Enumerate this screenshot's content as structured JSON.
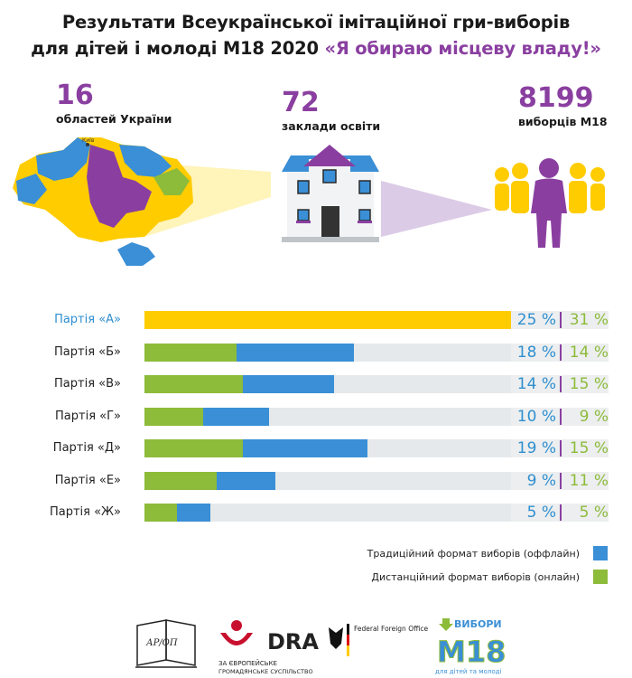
{
  "header": {
    "title_line1": "Результати Всеукраїнської імітаційної гри-виборів",
    "title_line2": "для дітей і молоді М18 2020 ",
    "slogan": "«Я обираю місцеву владу!»"
  },
  "stats": {
    "regions": {
      "value": "16",
      "label": "областей України"
    },
    "schools": {
      "value": "72",
      "label": "заклади освіти"
    },
    "voters": {
      "value": "8199",
      "label": "виборців М18"
    }
  },
  "map": {
    "city_label": "Київ"
  },
  "colors": {
    "yellow": "#ffcc00",
    "blue": "#3a8fd6",
    "green": "#8dbb3a",
    "purple": "#8a3fa0",
    "track": "#e6e9eb"
  },
  "chart_data": {
    "type": "bar",
    "orientation": "horizontal",
    "stacked": true,
    "categories": [
      "Партія «А»",
      "Партія «Б»",
      "Партія «В»",
      "Партія «Г»",
      "Партія «Д»",
      "Партія «Е»",
      "Партія «Ж»"
    ],
    "series": [
      {
        "name": "Традиційний формат виборів (оффлайн)",
        "color": "#3a8fd6",
        "values": [
          25,
          18,
          14,
          10,
          19,
          9,
          5
        ]
      },
      {
        "name": "Дистанційний формат виборів (онлайн)",
        "color": "#8dbb3a",
        "values": [
          31,
          14,
          15,
          9,
          15,
          11,
          5
        ]
      }
    ],
    "labels_offline": [
      "25 %",
      "18 %",
      "14 %",
      "10 %",
      "19 %",
      "9 %",
      "5 %"
    ],
    "labels_online": [
      "31 %",
      "14 %",
      "15 %",
      "9 %",
      "15 %",
      "11 %",
      "5 %"
    ],
    "highlight_category": "Партія «А»",
    "highlight_color": "#ffcc00",
    "legend_position": "bottom-right"
  },
  "legend": {
    "offline": "Традиційний формат виборів (оффлайн)",
    "online": "Дистанційний формат виборів (онлайн)"
  },
  "footer": {
    "dra_name": "DRA",
    "dra_sub1": "ЗА ЄВРОПЕЙСЬКЕ",
    "dra_sub2": "ГРОМАДЯНСЬКЕ СУСПІЛЬСТВО",
    "ffo": "Federal Foreign Office",
    "m18_top": "ВИБОРИ",
    "m18_big": "М18",
    "m18_sub": "для дітей та молоді",
    "apon": "АР/ОП"
  }
}
